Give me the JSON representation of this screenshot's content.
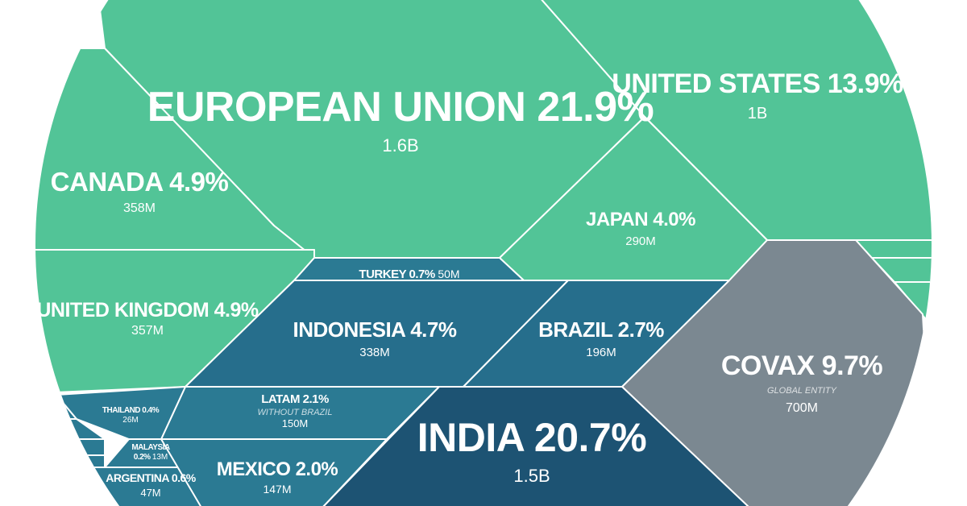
{
  "chart_data": {
    "type": "voronoi-treemap",
    "title": "",
    "colors": {
      "green": "#52c497",
      "teal_light": "#2b7a93",
      "teal_mid": "#266e8c",
      "navy": "#1d5373",
      "gray": "#7b8891"
    },
    "cells": [
      {
        "id": "eu",
        "label": "EUROPEAN UNION 21.9%",
        "value_label": "1.6B",
        "share_pct": 21.9,
        "doses_millions": 1600,
        "color": "green"
      },
      {
        "id": "us",
        "label": "UNITED STATES 13.9%",
        "value_label": "1B",
        "share_pct": 13.9,
        "doses_millions": 1000,
        "color": "green"
      },
      {
        "id": "canada",
        "label": "CANADA 4.9%",
        "value_label": "358M",
        "share_pct": 4.9,
        "doses_millions": 358,
        "color": "green"
      },
      {
        "id": "uk",
        "label": "UNITED KINGDOM 4.9%",
        "value_label": "357M",
        "share_pct": 4.9,
        "doses_millions": 357,
        "color": "green"
      },
      {
        "id": "japan",
        "label": "JAPAN 4.0%",
        "value_label": "290M",
        "share_pct": 4.0,
        "doses_millions": 290,
        "color": "green"
      },
      {
        "id": "turkey",
        "label": "TURKEY 0.7%",
        "value_label": "50M",
        "share_pct": 0.7,
        "doses_millions": 50,
        "color": "teal_light"
      },
      {
        "id": "indonesia",
        "label": "INDONESIA 4.7%",
        "value_label": "338M",
        "share_pct": 4.7,
        "doses_millions": 338,
        "color": "teal_mid"
      },
      {
        "id": "brazil",
        "label": "BRAZIL 2.7%",
        "value_label": "196M",
        "share_pct": 2.7,
        "doses_millions": 196,
        "color": "teal_mid"
      },
      {
        "id": "covax",
        "label": "COVAX 9.7%",
        "sublabel": "GLOBAL ENTITY",
        "value_label": "700M",
        "share_pct": 9.7,
        "doses_millions": 700,
        "color": "gray"
      },
      {
        "id": "latam",
        "label": "LATAM 2.1%",
        "sublabel": "WITHOUT BRAZIL",
        "value_label": "150M",
        "share_pct": 2.1,
        "doses_millions": 150,
        "color": "teal_light"
      },
      {
        "id": "thailand",
        "label": "THAILAND 0.4%",
        "value_label": "26M",
        "share_pct": 0.4,
        "doses_millions": 26,
        "color": "teal_light"
      },
      {
        "id": "malaysia",
        "label": "MALAYSIA",
        "label2": "0.2%",
        "value_label": "13M",
        "share_pct": 0.2,
        "doses_millions": 13,
        "color": "teal_light"
      },
      {
        "id": "argentina",
        "label": "ARGENTINA 0.6%",
        "value_label": "47M",
        "share_pct": 0.6,
        "doses_millions": 47,
        "color": "teal_light"
      },
      {
        "id": "mexico",
        "label": "MEXICO 2.0%",
        "value_label": "147M",
        "share_pct": 2.0,
        "doses_millions": 147,
        "color": "teal_light"
      },
      {
        "id": "india",
        "label": "INDIA 20.7%",
        "value_label": "1.5B",
        "share_pct": 20.7,
        "doses_millions": 1500,
        "color": "navy"
      }
    ]
  }
}
